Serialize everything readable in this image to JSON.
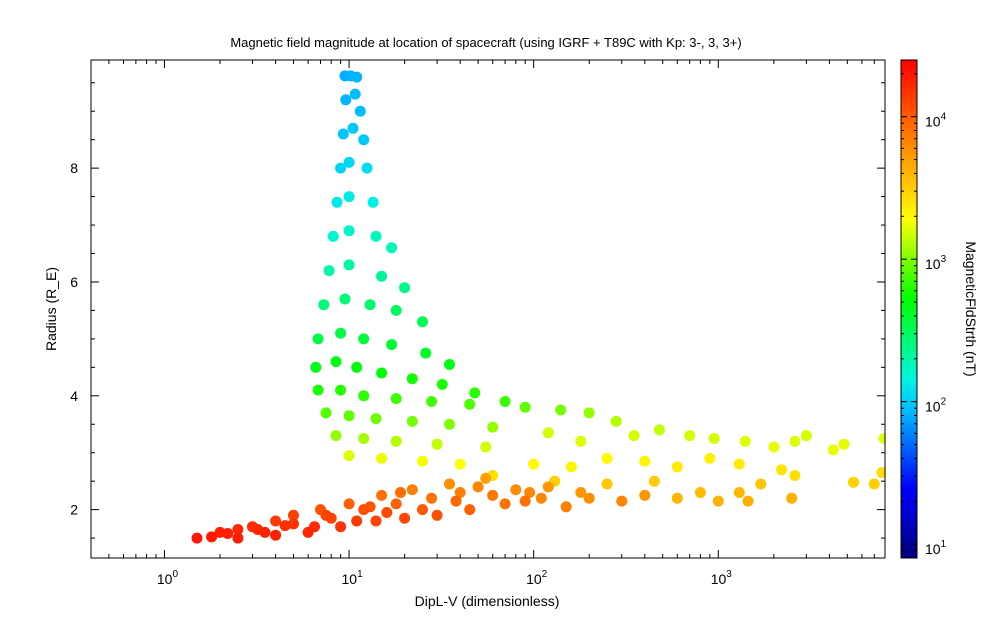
{
  "chart_data": {
    "type": "scatter",
    "title": "Magnetic field magnitude at location of spacecraft (using IGRF + T89C with Kp: 3-, 3, 3+)",
    "xlabel": "DipL-V (dimensionless)",
    "ylabel": "Radius (R_E)",
    "x_scale": "log",
    "xlim": [
      0.4,
      8000
    ],
    "ylim": [
      1.15,
      9.9
    ],
    "x_ticks": [
      {
        "value": 1,
        "base": "10",
        "exp": "0"
      },
      {
        "value": 10,
        "base": "10",
        "exp": "1"
      },
      {
        "value": 100,
        "base": "10",
        "exp": "2"
      },
      {
        "value": 1000,
        "base": "10",
        "exp": "3"
      }
    ],
    "y_ticks": [
      2,
      4,
      6,
      8
    ],
    "grid": false,
    "colorbar": {
      "label": "MagneticFldStrth (nT)",
      "scale": "log",
      "range": [
        8,
        25000
      ],
      "colormap": "rainbow",
      "ticks": [
        {
          "value": 10,
          "base": "10",
          "exp": "1"
        },
        {
          "value": 100,
          "base": "10",
          "exp": "2"
        },
        {
          "value": 1000,
          "base": "10",
          "exp": "3"
        },
        {
          "value": 10000,
          "base": "10",
          "exp": "4"
        }
      ]
    },
    "series": [
      {
        "points": [
          {
            "x": 9.5,
            "y": 9.62,
            "b": 80
          },
          {
            "x": 10.2,
            "y": 9.62,
            "b": 82
          },
          {
            "x": 11.0,
            "y": 9.6,
            "b": 85
          },
          {
            "x": 9.6,
            "y": 9.2,
            "b": 85
          },
          {
            "x": 10.8,
            "y": 9.3,
            "b": 88
          },
          {
            "x": 11.5,
            "y": 9.0,
            "b": 90
          },
          {
            "x": 9.3,
            "y": 8.6,
            "b": 95
          },
          {
            "x": 10.5,
            "y": 8.7,
            "b": 98
          },
          {
            "x": 12.0,
            "y": 8.5,
            "b": 100
          },
          {
            "x": 9.0,
            "y": 8.0,
            "b": 110
          },
          {
            "x": 10.0,
            "y": 8.1,
            "b": 112
          },
          {
            "x": 12.5,
            "y": 8.0,
            "b": 118
          },
          {
            "x": 8.6,
            "y": 7.4,
            "b": 130
          },
          {
            "x": 10.0,
            "y": 7.5,
            "b": 135
          },
          {
            "x": 13.5,
            "y": 7.4,
            "b": 140
          },
          {
            "x": 8.2,
            "y": 6.8,
            "b": 160
          },
          {
            "x": 10.0,
            "y": 6.9,
            "b": 165
          },
          {
            "x": 14.0,
            "y": 6.8,
            "b": 175
          },
          {
            "x": 17.0,
            "y": 6.6,
            "b": 185
          },
          {
            "x": 7.8,
            "y": 6.2,
            "b": 200
          },
          {
            "x": 10.0,
            "y": 6.3,
            "b": 210
          },
          {
            "x": 15.0,
            "y": 6.1,
            "b": 225
          },
          {
            "x": 20.0,
            "y": 5.9,
            "b": 240
          },
          {
            "x": 7.3,
            "y": 5.6,
            "b": 260
          },
          {
            "x": 9.5,
            "y": 5.7,
            "b": 270
          },
          {
            "x": 13.0,
            "y": 5.6,
            "b": 285
          },
          {
            "x": 18.0,
            "y": 5.5,
            "b": 300
          },
          {
            "x": 25.0,
            "y": 5.3,
            "b": 320
          },
          {
            "x": 6.8,
            "y": 5.0,
            "b": 350
          },
          {
            "x": 9.0,
            "y": 5.1,
            "b": 360
          },
          {
            "x": 12.0,
            "y": 5.0,
            "b": 380
          },
          {
            "x": 17.0,
            "y": 4.9,
            "b": 400
          },
          {
            "x": 26.0,
            "y": 4.75,
            "b": 430
          },
          {
            "x": 35.0,
            "y": 4.55,
            "b": 460
          },
          {
            "x": 6.6,
            "y": 4.5,
            "b": 450
          },
          {
            "x": 8.5,
            "y": 4.6,
            "b": 470
          },
          {
            "x": 11.0,
            "y": 4.5,
            "b": 490
          },
          {
            "x": 15.0,
            "y": 4.4,
            "b": 520
          },
          {
            "x": 22.0,
            "y": 4.3,
            "b": 560
          },
          {
            "x": 32.0,
            "y": 4.2,
            "b": 600
          },
          {
            "x": 48.0,
            "y": 4.05,
            "b": 650
          },
          {
            "x": 70.0,
            "y": 3.9,
            "b": 700
          },
          {
            "x": 6.8,
            "y": 4.1,
            "b": 600
          },
          {
            "x": 9.0,
            "y": 4.1,
            "b": 630
          },
          {
            "x": 12.0,
            "y": 4.0,
            "b": 660
          },
          {
            "x": 18.0,
            "y": 3.95,
            "b": 700
          },
          {
            "x": 28.0,
            "y": 3.9,
            "b": 740
          },
          {
            "x": 45.0,
            "y": 3.85,
            "b": 780
          },
          {
            "x": 90.0,
            "y": 3.8,
            "b": 850
          },
          {
            "x": 140.0,
            "y": 3.75,
            "b": 950
          },
          {
            "x": 200.0,
            "y": 3.7,
            "b": 1100
          },
          {
            "x": 7.5,
            "y": 3.7,
            "b": 800
          },
          {
            "x": 10.0,
            "y": 3.65,
            "b": 850
          },
          {
            "x": 14.0,
            "y": 3.6,
            "b": 900
          },
          {
            "x": 22.0,
            "y": 3.55,
            "b": 950
          },
          {
            "x": 35.0,
            "y": 3.5,
            "b": 1000
          },
          {
            "x": 60.0,
            "y": 3.45,
            "b": 1100
          },
          {
            "x": 8.5,
            "y": 3.3,
            "b": 1100
          },
          {
            "x": 12.0,
            "y": 3.25,
            "b": 1200
          },
          {
            "x": 18.0,
            "y": 3.2,
            "b": 1300
          },
          {
            "x": 30.0,
            "y": 3.15,
            "b": 1400
          },
          {
            "x": 55.0,
            "y": 3.1,
            "b": 1500
          },
          {
            "x": 10.0,
            "y": 2.95,
            "b": 1600
          },
          {
            "x": 15.0,
            "y": 2.9,
            "b": 1700
          },
          {
            "x": 25.0,
            "y": 2.85,
            "b": 1800
          },
          {
            "x": 40.0,
            "y": 2.8,
            "b": 1900
          },
          {
            "x": 120.0,
            "y": 3.35,
            "b": 1500
          },
          {
            "x": 180.0,
            "y": 3.2,
            "b": 1600
          },
          {
            "x": 280.0,
            "y": 3.55,
            "b": 1300
          },
          {
            "x": 350.0,
            "y": 3.3,
            "b": 1500
          },
          {
            "x": 480.0,
            "y": 3.4,
            "b": 1400
          },
          {
            "x": 700.0,
            "y": 3.3,
            "b": 1500
          },
          {
            "x": 950.0,
            "y": 3.25,
            "b": 1500
          },
          {
            "x": 1400.0,
            "y": 3.2,
            "b": 1600
          },
          {
            "x": 2000.0,
            "y": 3.1,
            "b": 1700
          },
          {
            "x": 2600.0,
            "y": 3.2,
            "b": 1600
          },
          {
            "x": 3000.0,
            "y": 3.3,
            "b": 1550
          },
          {
            "x": 4200.0,
            "y": 3.05,
            "b": 1700
          },
          {
            "x": 4800.0,
            "y": 3.15,
            "b": 1650
          },
          {
            "x": 7900.0,
            "y": 3.25,
            "b": 1600
          },
          {
            "x": 100.0,
            "y": 2.8,
            "b": 2000
          },
          {
            "x": 160.0,
            "y": 2.75,
            "b": 2100
          },
          {
            "x": 250.0,
            "y": 2.9,
            "b": 2000
          },
          {
            "x": 400.0,
            "y": 2.85,
            "b": 2100
          },
          {
            "x": 600.0,
            "y": 2.75,
            "b": 2300
          },
          {
            "x": 900.0,
            "y": 2.9,
            "b": 2200
          },
          {
            "x": 1300.0,
            "y": 2.8,
            "b": 2300
          },
          {
            "x": 2200.0,
            "y": 2.7,
            "b": 2500
          },
          {
            "x": 2600.0,
            "y": 2.6,
            "b": 2600
          },
          {
            "x": 7700.0,
            "y": 2.65,
            "b": 2700
          },
          {
            "x": 5400.0,
            "y": 2.48,
            "b": 3000
          },
          {
            "x": 7000.0,
            "y": 2.45,
            "b": 3100
          },
          {
            "x": 60.0,
            "y": 2.6,
            "b": 2600
          },
          {
            "x": 130.0,
            "y": 2.5,
            "b": 3000
          },
          {
            "x": 250.0,
            "y": 2.45,
            "b": 3300
          },
          {
            "x": 450.0,
            "y": 2.5,
            "b": 3200
          },
          {
            "x": 800.0,
            "y": 2.3,
            "b": 3800
          },
          {
            "x": 1300.0,
            "y": 2.3,
            "b": 3900
          },
          {
            "x": 1700.0,
            "y": 2.45,
            "b": 3500
          },
          {
            "x": 2500.0,
            "y": 2.2,
            "b": 4200
          },
          {
            "x": 600.0,
            "y": 2.2,
            "b": 4000
          },
          {
            "x": 1000.0,
            "y": 2.15,
            "b": 4200
          },
          {
            "x": 1450.0,
            "y": 2.15,
            "b": 4300
          },
          {
            "x": 1.5,
            "y": 1.5,
            "b": 20000
          },
          {
            "x": 2.0,
            "y": 1.6,
            "b": 18000
          },
          {
            "x": 2.5,
            "y": 1.65,
            "b": 17000
          },
          {
            "x": 3.0,
            "y": 1.7,
            "b": 16000
          },
          {
            "x": 4.0,
            "y": 1.8,
            "b": 14000
          },
          {
            "x": 5.0,
            "y": 1.9,
            "b": 13000
          },
          {
            "x": 7.0,
            "y": 2.0,
            "b": 11000
          },
          {
            "x": 10.0,
            "y": 2.1,
            "b": 9500
          },
          {
            "x": 15.0,
            "y": 2.25,
            "b": 8000
          },
          {
            "x": 22.0,
            "y": 2.35,
            "b": 7000
          },
          {
            "x": 35.0,
            "y": 2.45,
            "b": 6000
          },
          {
            "x": 55.0,
            "y": 2.55,
            "b": 5000
          },
          {
            "x": 2.5,
            "y": 1.5,
            "b": 19000
          },
          {
            "x": 4.0,
            "y": 1.55,
            "b": 18000
          },
          {
            "x": 6.0,
            "y": 1.6,
            "b": 17000
          },
          {
            "x": 9.0,
            "y": 1.7,
            "b": 15000
          },
          {
            "x": 14.0,
            "y": 1.8,
            "b": 13000
          },
          {
            "x": 20.0,
            "y": 1.85,
            "b": 12000
          },
          {
            "x": 30.0,
            "y": 1.9,
            "b": 11000
          },
          {
            "x": 45.0,
            "y": 2.0,
            "b": 9500
          },
          {
            "x": 70.0,
            "y": 2.1,
            "b": 8000
          },
          {
            "x": 110.0,
            "y": 2.2,
            "b": 6500
          },
          {
            "x": 150.0,
            "y": 2.05,
            "b": 7000
          },
          {
            "x": 200.0,
            "y": 2.2,
            "b": 6000
          },
          {
            "x": 5.0,
            "y": 1.75,
            "b": 15000
          },
          {
            "x": 8.0,
            "y": 1.85,
            "b": 13000
          },
          {
            "x": 12.0,
            "y": 2.0,
            "b": 11000
          },
          {
            "x": 18.0,
            "y": 2.1,
            "b": 9500
          },
          {
            "x": 28.0,
            "y": 2.2,
            "b": 8000
          },
          {
            "x": 40.0,
            "y": 2.3,
            "b": 7000
          },
          {
            "x": 80.0,
            "y": 2.35,
            "b": 6000
          },
          {
            "x": 120.0,
            "y": 2.4,
            "b": 5500
          },
          {
            "x": 3.5,
            "y": 1.6,
            "b": 17500
          },
          {
            "x": 6.5,
            "y": 1.7,
            "b": 16000
          },
          {
            "x": 11.0,
            "y": 1.8,
            "b": 14000
          },
          {
            "x": 16.0,
            "y": 1.95,
            "b": 12000
          },
          {
            "x": 25.0,
            "y": 2.0,
            "b": 10500
          },
          {
            "x": 38.0,
            "y": 2.15,
            "b": 9000
          },
          {
            "x": 60.0,
            "y": 2.25,
            "b": 7500
          },
          {
            "x": 95.0,
            "y": 2.3,
            "b": 6500
          },
          {
            "x": 300.0,
            "y": 2.15,
            "b": 6500
          },
          {
            "x": 400.0,
            "y": 2.25,
            "b": 5500
          },
          {
            "x": 180.0,
            "y": 2.3,
            "b": 5500
          },
          {
            "x": 90.0,
            "y": 2.15,
            "b": 8000
          },
          {
            "x": 1.8,
            "y": 1.52,
            "b": 19500
          },
          {
            "x": 2.2,
            "y": 1.58,
            "b": 18500
          },
          {
            "x": 3.2,
            "y": 1.65,
            "b": 17000
          },
          {
            "x": 4.5,
            "y": 1.72,
            "b": 15500
          },
          {
            "x": 7.5,
            "y": 1.9,
            "b": 12500
          },
          {
            "x": 13.0,
            "y": 2.05,
            "b": 10500
          },
          {
            "x": 19.0,
            "y": 2.3,
            "b": 8500
          },
          {
            "x": 50.0,
            "y": 2.4,
            "b": 6500
          }
        ]
      }
    ]
  }
}
